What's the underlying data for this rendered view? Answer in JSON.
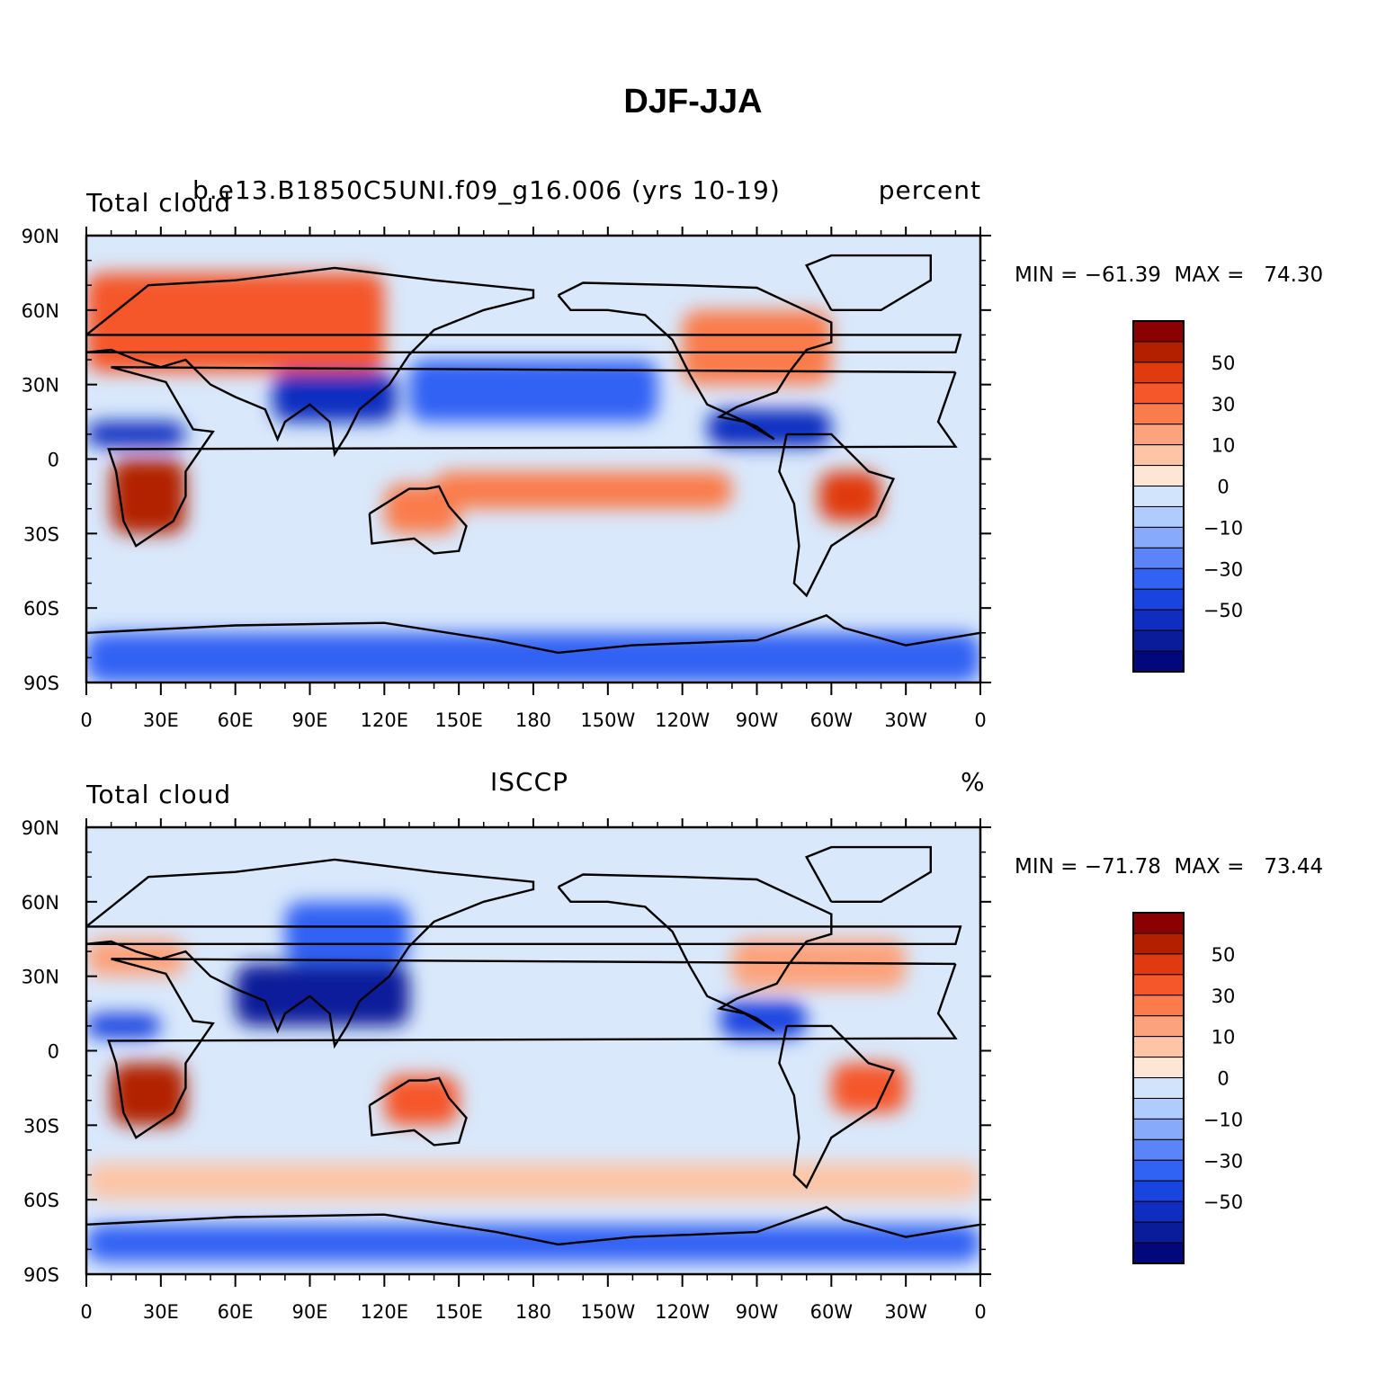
{
  "title": "DJF-JJA",
  "panels": [
    {
      "id": "model",
      "header_left": "Total cloud",
      "header_center": "b.e13.B1850C5UNI.f09_g16.006 (yrs 10-19)",
      "header_right": "percent",
      "min_label": "MIN = −61.39",
      "max_label": "MAX =   74.30",
      "min": -61.39,
      "max": 74.3
    },
    {
      "id": "obs",
      "header_left": "Total cloud",
      "header_center": "ISCCP",
      "header_right": "%",
      "min_label": "MIN = −71.78",
      "max_label": "MAX =   73.44",
      "min": -71.78,
      "max": 73.44
    }
  ],
  "lat_labels": [
    "90N",
    "60N",
    "30N",
    "0",
    "30S",
    "60S",
    "90S"
  ],
  "lon_labels": [
    "0",
    "30E",
    "60E",
    "90E",
    "120E",
    "150E",
    "180",
    "150W",
    "120W",
    "90W",
    "60W",
    "30W",
    "0"
  ],
  "colorbar": {
    "labels": [
      "50",
      "30",
      "10",
      "0",
      "−10",
      "−30",
      "−50"
    ],
    "colors": [
      "#8b0000",
      "#b22000",
      "#e03a10",
      "#f5562a",
      "#fa7c4c",
      "#fca27c",
      "#fdc4a6",
      "#fde6d4",
      "#d2e4fc",
      "#b0ccfc",
      "#88aafa",
      "#5a84f8",
      "#3062f4",
      "#1a44e0",
      "#0f2ec0",
      "#0a1c9a",
      "#00087c"
    ]
  },
  "chart_data": [
    {
      "type": "heatmap",
      "title": "Total cloud",
      "subtitle": "b.e13.B1850C5UNI.f09_g16.006 (yrs 10-19)",
      "units": "percent",
      "x_ticks": [
        "0",
        "30E",
        "60E",
        "90E",
        "120E",
        "150E",
        "180",
        "150W",
        "120W",
        "90W",
        "60W",
        "30W",
        "0"
      ],
      "y_ticks": [
        "90N",
        "60N",
        "30N",
        "0",
        "30S",
        "60S",
        "90S"
      ],
      "xlim": [
        0,
        360
      ],
      "ylim": [
        -90,
        90
      ],
      "min": -61.39,
      "max": 74.3,
      "levels": [
        -60,
        -50,
        -40,
        -30,
        -20,
        -10,
        -5,
        0,
        5,
        10,
        20,
        30,
        40,
        50,
        60
      ],
      "regions": [
        {
          "lon": [
            0,
            120
          ],
          "lat": [
            35,
            75
          ],
          "value": 45
        },
        {
          "lon": [
            10,
            40
          ],
          "lat": [
            -30,
            0
          ],
          "value": 60
        },
        {
          "lon": [
            295,
            320
          ],
          "lat": [
            -25,
            -5
          ],
          "value": 55
        },
        {
          "lon": [
            240,
            300
          ],
          "lat": [
            30,
            60
          ],
          "value": 35
        },
        {
          "lon": [
            120,
            150
          ],
          "lat": [
            -30,
            -10
          ],
          "value": 30
        },
        {
          "lon": [
            140,
            260
          ],
          "lat": [
            -20,
            -5
          ],
          "value": 30
        },
        {
          "lon": [
            0,
            40
          ],
          "lat": [
            5,
            15
          ],
          "value": -45
        },
        {
          "lon": [
            75,
            125
          ],
          "lat": [
            15,
            35
          ],
          "value": -45
        },
        {
          "lon": [
            130,
            230
          ],
          "lat": [
            15,
            40
          ],
          "value": -30
        },
        {
          "lon": [
            250,
            300
          ],
          "lat": [
            5,
            20
          ],
          "value": -45
        },
        {
          "lon": [
            0,
            360
          ],
          "lat": [
            -90,
            -70
          ],
          "value": -30
        }
      ]
    },
    {
      "type": "heatmap",
      "title": "Total cloud",
      "subtitle": "ISCCP",
      "units": "%",
      "x_ticks": [
        "0",
        "30E",
        "60E",
        "90E",
        "120E",
        "150E",
        "180",
        "150W",
        "120W",
        "90W",
        "60W",
        "30W",
        "0"
      ],
      "y_ticks": [
        "90N",
        "60N",
        "30N",
        "0",
        "30S",
        "60S",
        "90S"
      ],
      "xlim": [
        0,
        360
      ],
      "ylim": [
        -90,
        90
      ],
      "min": -71.78,
      "max": 73.44,
      "levels": [
        -60,
        -50,
        -40,
        -30,
        -20,
        -10,
        -5,
        0,
        5,
        10,
        20,
        30,
        40,
        50,
        60
      ],
      "regions": [
        {
          "lon": [
            10,
            40
          ],
          "lat": [
            -30,
            -5
          ],
          "value": 60
        },
        {
          "lon": [
            120,
            150
          ],
          "lat": [
            -30,
            -10
          ],
          "value": 40
        },
        {
          "lon": [
            300,
            330
          ],
          "lat": [
            -25,
            -5
          ],
          "value": 45
        },
        {
          "lon": [
            260,
            330
          ],
          "lat": [
            25,
            45
          ],
          "value": 25
        },
        {
          "lon": [
            0,
            40
          ],
          "lat": [
            30,
            45
          ],
          "value": 25
        },
        {
          "lon": [
            60,
            130
          ],
          "lat": [
            10,
            35
          ],
          "value": -55
        },
        {
          "lon": [
            80,
            130
          ],
          "lat": [
            35,
            60
          ],
          "value": -25
        },
        {
          "lon": [
            0,
            30
          ],
          "lat": [
            5,
            15
          ],
          "value": -40
        },
        {
          "lon": [
            255,
            290
          ],
          "lat": [
            5,
            20
          ],
          "value": -40
        },
        {
          "lon": [
            0,
            360
          ],
          "lat": [
            -85,
            -70
          ],
          "value": -30
        },
        {
          "lon": [
            0,
            360
          ],
          "lat": [
            -60,
            -45
          ],
          "value": 15
        }
      ]
    }
  ]
}
